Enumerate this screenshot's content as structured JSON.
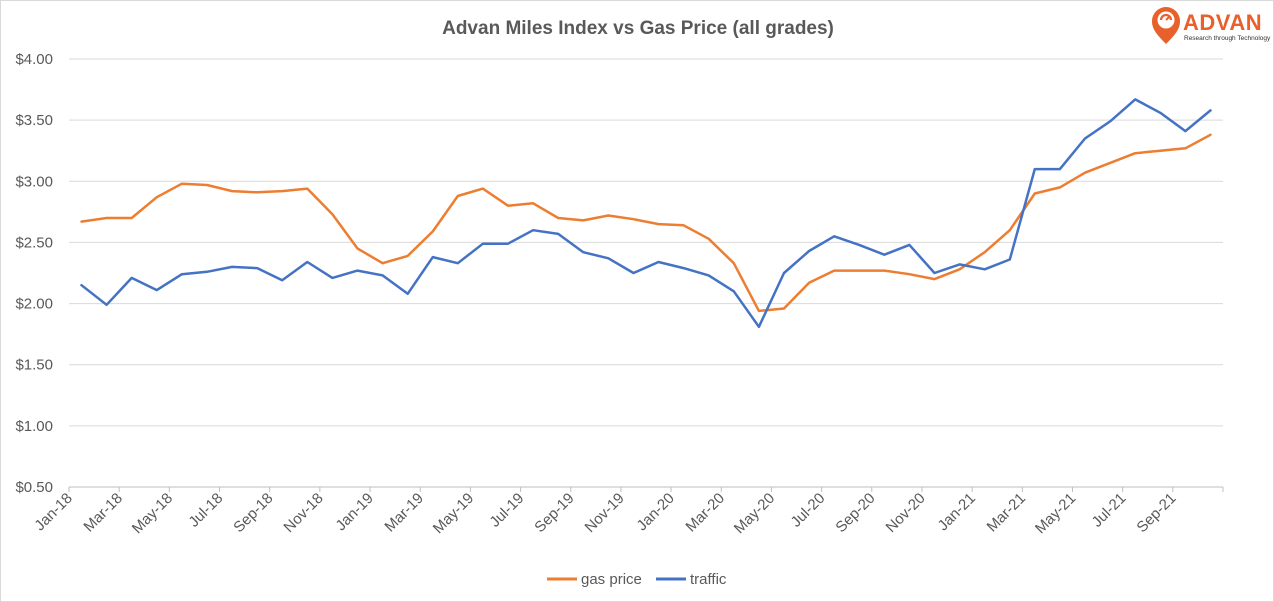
{
  "chart_data": {
    "type": "line",
    "title": "Advan Miles Index vs Gas Price (all grades)",
    "xlabel": "",
    "ylabel": "",
    "ylim": [
      0.5,
      4.0
    ],
    "y_ticks": [
      "$0.50",
      "$1.00",
      "$1.50",
      "$2.00",
      "$2.50",
      "$3.00",
      "$3.50",
      "$4.00"
    ],
    "y_tick_values": [
      0.5,
      1.0,
      1.5,
      2.0,
      2.5,
      3.0,
      3.5,
      4.0
    ],
    "grid": "horizontal",
    "legend_position": "bottom",
    "x_tick_labels": [
      "Jan-18",
      "Mar-18",
      "May-18",
      "Jul-18",
      "Sep-18",
      "Nov-18",
      "Jan-19",
      "Mar-19",
      "May-19",
      "Jul-19",
      "Sep-19",
      "Nov-19",
      "Jan-20",
      "Mar-20",
      "May-20",
      "Jul-20",
      "Sep-20",
      "Nov-20",
      "Jan-21",
      "Mar-21",
      "May-21",
      "Jul-21",
      "Sep-21"
    ],
    "categories": [
      "Jan-18",
      "Feb-18",
      "Mar-18",
      "Apr-18",
      "May-18",
      "Jun-18",
      "Jul-18",
      "Aug-18",
      "Sep-18",
      "Oct-18",
      "Nov-18",
      "Dec-18",
      "Jan-19",
      "Feb-19",
      "Mar-19",
      "Apr-19",
      "May-19",
      "Jun-19",
      "Jul-19",
      "Aug-19",
      "Sep-19",
      "Oct-19",
      "Nov-19",
      "Dec-19",
      "Jan-20",
      "Feb-20",
      "Mar-20",
      "Apr-20",
      "May-20",
      "Jun-20",
      "Jul-20",
      "Aug-20",
      "Sep-20",
      "Oct-20",
      "Nov-20",
      "Dec-20",
      "Jan-21",
      "Feb-21",
      "Mar-21",
      "Apr-21",
      "May-21",
      "Jun-21",
      "Jul-21",
      "Aug-21",
      "Sep-21",
      "Oct-21"
    ],
    "series": [
      {
        "name": "gas price",
        "color": "#ed7d31",
        "values": [
          2.67,
          2.7,
          2.7,
          2.87,
          2.98,
          2.97,
          2.92,
          2.91,
          2.92,
          2.94,
          2.73,
          2.45,
          2.33,
          2.39,
          2.59,
          2.88,
          2.94,
          2.8,
          2.82,
          2.7,
          2.68,
          2.72,
          2.69,
          2.65,
          2.64,
          2.53,
          2.33,
          1.94,
          1.96,
          2.17,
          2.27,
          2.27,
          2.27,
          2.24,
          2.2,
          2.28,
          2.42,
          2.6,
          2.9,
          2.95,
          3.07,
          3.15,
          3.23,
          3.25,
          3.27,
          3.38
        ]
      },
      {
        "name": "traffic",
        "color": "#4472c4",
        "values": [
          2.15,
          1.99,
          2.21,
          2.11,
          2.24,
          2.26,
          2.3,
          2.29,
          2.19,
          2.34,
          2.21,
          2.27,
          2.23,
          2.08,
          2.38,
          2.33,
          2.49,
          2.49,
          2.6,
          2.57,
          2.42,
          2.37,
          2.25,
          2.34,
          2.29,
          2.23,
          2.1,
          1.81,
          2.25,
          2.43,
          2.55,
          2.48,
          2.4,
          2.48,
          2.25,
          2.32,
          2.28,
          2.36,
          3.1,
          3.1,
          3.35,
          3.49,
          3.67,
          3.56,
          3.41,
          3.58
        ]
      }
    ]
  },
  "logo": {
    "brand": "ADVAN",
    "tagline": "Research through Technology"
  },
  "colors": {
    "gridline": "#d9d9d9",
    "axis_text": "#595959",
    "brand_orange": "#e8612c"
  }
}
